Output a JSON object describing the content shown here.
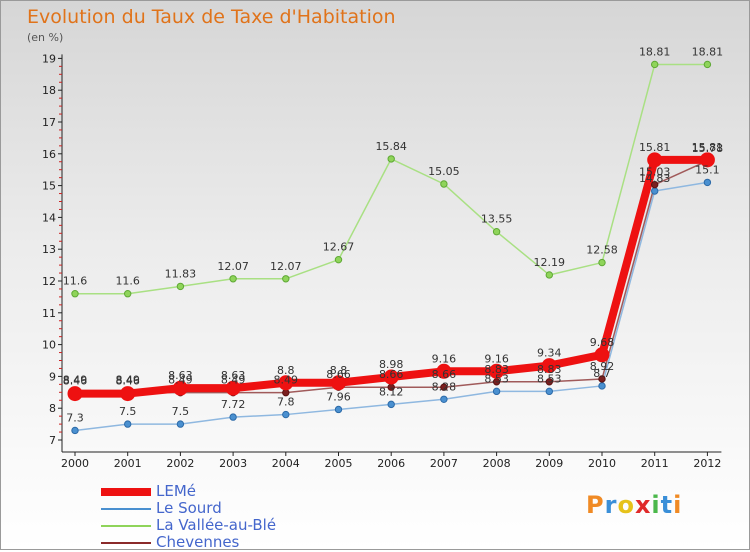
{
  "title": "Evolution du Taux de Taxe d'Habitation",
  "subtitle": "(en %)",
  "logo": "Proxiti",
  "chart_data": {
    "type": "line",
    "x": [
      "2000",
      "2001",
      "2002",
      "2003",
      "2004",
      "2005",
      "2006",
      "2007",
      "2008",
      "2009",
      "2010",
      "2011",
      "2012"
    ],
    "ylim": [
      7,
      19
    ],
    "yticks": [
      7,
      8,
      9,
      10,
      11,
      12,
      13,
      14,
      15,
      16,
      17,
      18,
      19
    ],
    "grid": false,
    "legend_position": "bottom-left",
    "series": [
      {
        "name": "LEMé",
        "color": "#ee1111",
        "values": [
          8.46,
          8.46,
          8.63,
          8.63,
          8.8,
          8.8,
          8.98,
          9.16,
          9.16,
          9.34,
          9.68,
          15.81,
          15.81
        ]
      },
      {
        "name": "Le Sourd",
        "color": "#4a90d0",
        "values": [
          7.3,
          7.5,
          7.5,
          7.72,
          7.8,
          7.96,
          8.12,
          8.28,
          8.53,
          8.53,
          8.7,
          14.83,
          15.1
        ]
      },
      {
        "name": "La Vallée-au-Blé",
        "color": "#8fd45a",
        "values": [
          11.6,
          11.6,
          11.83,
          12.07,
          12.07,
          12.67,
          15.84,
          15.05,
          13.55,
          12.19,
          12.58,
          18.81,
          18.81
        ]
      },
      {
        "name": "Chevennes",
        "color": "#8b2a2a",
        "values": [
          8.49,
          8.49,
          8.49,
          8.49,
          8.49,
          8.66,
          8.66,
          8.66,
          8.83,
          8.83,
          8.92,
          15.03,
          15.78
        ]
      }
    ]
  }
}
